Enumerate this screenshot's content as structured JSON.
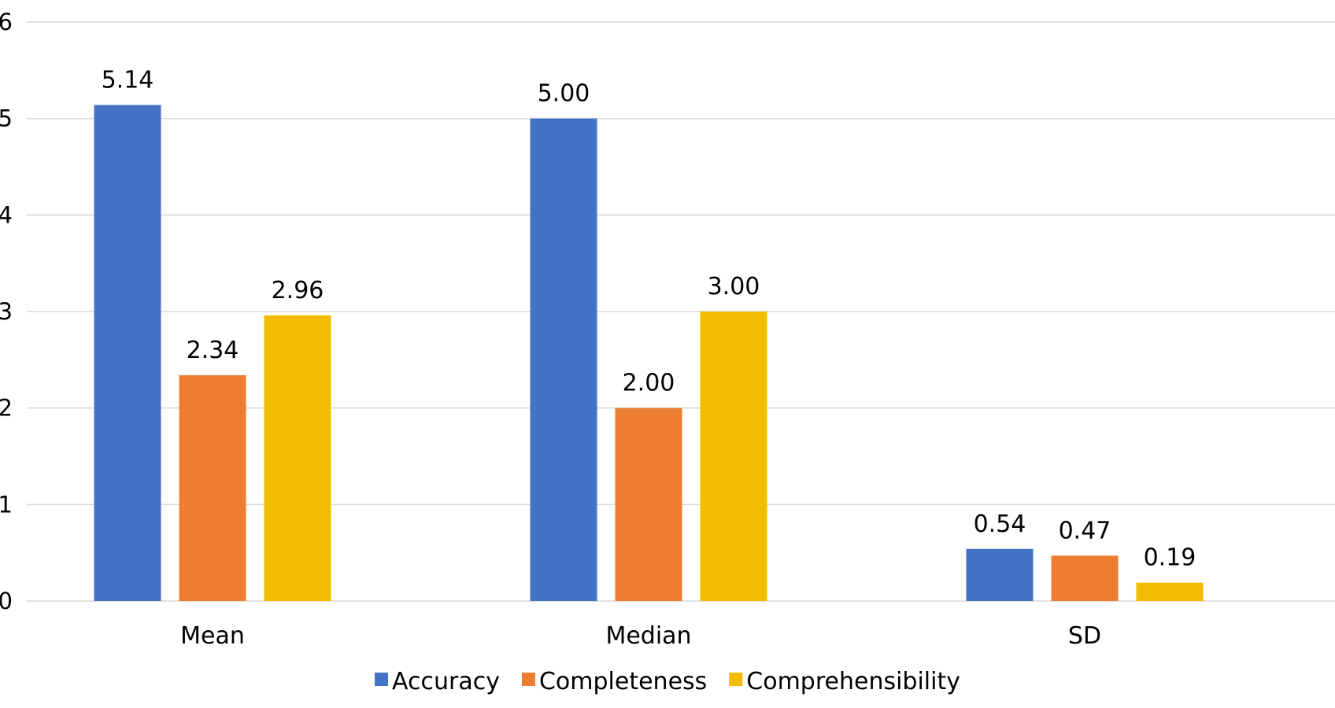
{
  "chart_data": {
    "type": "bar",
    "title": "",
    "xlabel": "",
    "ylabel": "",
    "ylim": [
      0,
      6
    ],
    "yticks": [
      0,
      1,
      2,
      3,
      4,
      5,
      6
    ],
    "grid": true,
    "legend_position": "bottom-center",
    "categories": [
      "Mean",
      "Median",
      "SD"
    ],
    "series": [
      {
        "name": "Accuracy",
        "color": "#4472c4",
        "values": [
          5.14,
          5.0,
          0.54
        ],
        "labels": [
          "5.14",
          "5.00",
          "0.54"
        ]
      },
      {
        "name": "Completeness",
        "color": "#ed7d31",
        "values": [
          2.34,
          2.0,
          0.47
        ],
        "labels": [
          "2.34",
          "2.00",
          "0.47"
        ]
      },
      {
        "name": "Comprehensibility",
        "color": "#f2bc00",
        "values": [
          2.96,
          3.0,
          0.19
        ],
        "labels": [
          "2.96",
          "3.00",
          "0.19"
        ]
      }
    ]
  }
}
